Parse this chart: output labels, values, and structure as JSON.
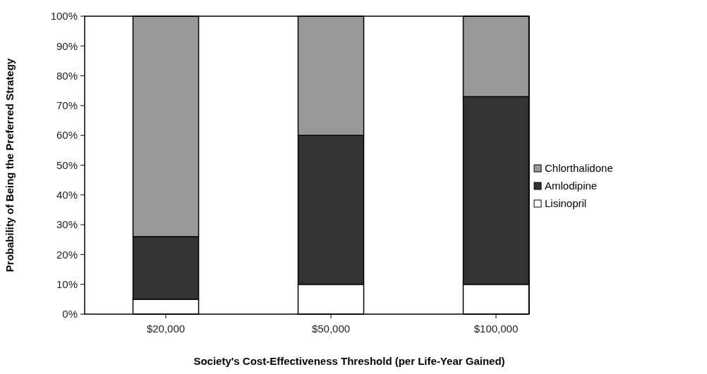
{
  "chart_data": {
    "type": "bar",
    "stacked": true,
    "xlabel": "Society's Cost-Effectiveness Threshold (per Life-Year Gained)",
    "ylabel": "Probability of Being the Preferred Strategy",
    "categories": [
      "$20,000",
      "$50,000",
      "$100,000"
    ],
    "series": [
      {
        "name": "Lisinopril",
        "color": "#ffffff",
        "values": [
          5,
          10,
          10
        ]
      },
      {
        "name": "Amlodipine",
        "color": "#333333",
        "values": [
          21,
          50,
          63
        ]
      },
      {
        "name": "Chlorthalidone",
        "color": "#999999",
        "values": [
          74,
          40,
          27
        ]
      }
    ],
    "ylim": [
      0,
      100
    ],
    "yticks": [
      {
        "value": 0,
        "label": "0%"
      },
      {
        "value": 10,
        "label": "10%"
      },
      {
        "value": 20,
        "label": "20%"
      },
      {
        "value": 30,
        "label": "30%"
      },
      {
        "value": 40,
        "label": "40%"
      },
      {
        "value": 50,
        "label": "50%"
      },
      {
        "value": 60,
        "label": "60%"
      },
      {
        "value": 70,
        "label": "70%"
      },
      {
        "value": 80,
        "label": "80%"
      },
      {
        "value": 90,
        "label": "90%"
      },
      {
        "value": 100,
        "label": "100%"
      }
    ],
    "legend": "right",
    "grid": false
  }
}
